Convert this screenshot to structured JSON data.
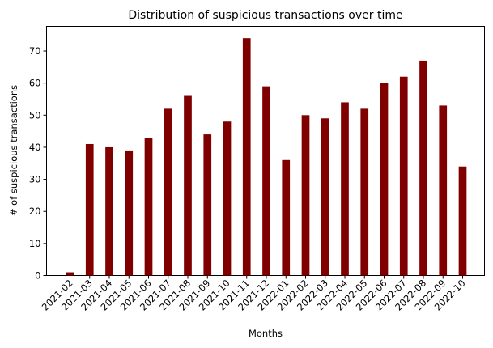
{
  "chart_data": {
    "type": "bar",
    "title": "Distribution of suspicious transactions over time",
    "xlabel": "Months",
    "ylabel": "# of suspicious transactions",
    "categories": [
      "2021-02",
      "2021-03",
      "2021-04",
      "2021-05",
      "2021-06",
      "2021-07",
      "2021-08",
      "2021-09",
      "2021-10",
      "2021-11",
      "2021-12",
      "2022-01",
      "2022-02",
      "2022-03",
      "2022-04",
      "2022-05",
      "2022-06",
      "2022-07",
      "2022-08",
      "2022-09",
      "2022-10"
    ],
    "values": [
      1,
      41,
      40,
      39,
      43,
      52,
      56,
      44,
      48,
      74,
      59,
      36,
      50,
      49,
      54,
      52,
      60,
      62,
      67,
      53,
      34
    ],
    "ylim": [
      0,
      77.7
    ],
    "yticks": [
      0,
      10,
      20,
      30,
      40,
      50,
      60,
      70
    ],
    "bar_color": "#800000",
    "grid": false,
    "legend": false
  }
}
